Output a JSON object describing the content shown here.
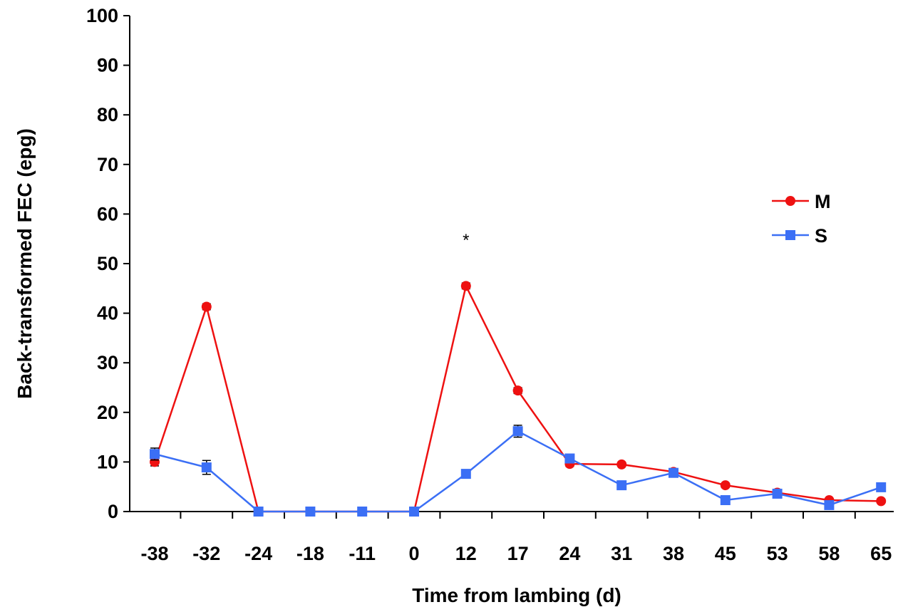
{
  "chart_data": {
    "type": "line",
    "xlabel": "Time from lambing (d)",
    "ylabel": "Back-transformed FEC (epg)",
    "ylim": [
      0,
      100
    ],
    "yticks": [
      0,
      10,
      20,
      30,
      40,
      50,
      60,
      70,
      80,
      90,
      100
    ],
    "categories": [
      "-38",
      "-32",
      "-24",
      "-18",
      "-11",
      "0",
      "12",
      "17",
      "24",
      "31",
      "38",
      "45",
      "53",
      "58",
      "65"
    ],
    "grid": false,
    "legend_position": "right",
    "series": [
      {
        "name": "M",
        "color": "#ee1111",
        "marker": "circle",
        "values": [
          10,
          41.3,
          0,
          0,
          0,
          0,
          45.5,
          24.4,
          9.6,
          9.5,
          8,
          5.3,
          3.8,
          2.3,
          2.1
        ],
        "errors": [
          0.8,
          0.6,
          0,
          0,
          0,
          0,
          0.6,
          0.6,
          0.5,
          0.4,
          0.5,
          0.4,
          0.4,
          0.3,
          0.3
        ]
      },
      {
        "name": "S",
        "color": "#3b6ff5",
        "marker": "square",
        "values": [
          11.6,
          8.9,
          0,
          0,
          0,
          0,
          7.6,
          16.2,
          10.7,
          5.3,
          7.8,
          2.3,
          3.6,
          1.3,
          4.9
        ],
        "errors": [
          1.2,
          1.4,
          0,
          0,
          0,
          0,
          0.7,
          1.2,
          0.6,
          0.6,
          0.7,
          0.5,
          0.6,
          0.5,
          0.4
        ]
      }
    ],
    "annotations": [
      {
        "text": "*",
        "category": "12",
        "y": 55
      }
    ]
  }
}
